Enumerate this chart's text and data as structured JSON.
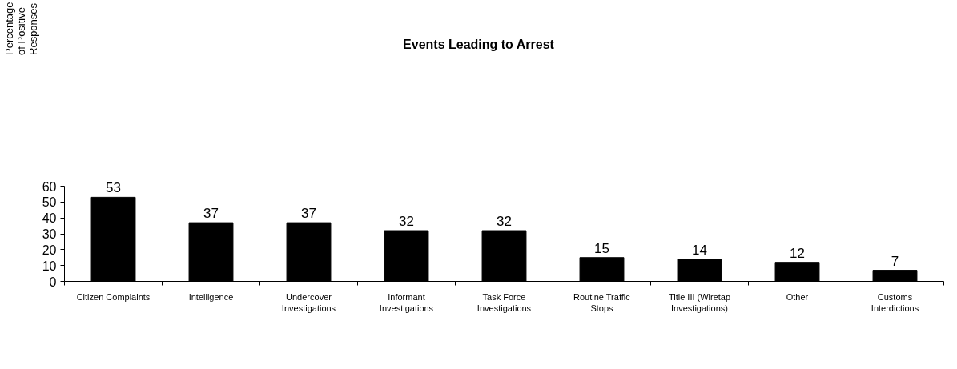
{
  "chart_data": {
    "type": "bar",
    "title": "Events Leading to Arrest",
    "annotations": [
      "Percentage of Positive Responses"
    ],
    "categories": [
      "Citizen Complaints",
      "Intelligence",
      "Undercover Investigations",
      "Informant Investigations",
      "Task Force Investigations",
      "Routine Traffic Stops",
      "Title III (Wiretap Investigations)",
      "Other",
      "Customs Interdictions"
    ],
    "values": [
      53,
      37,
      37,
      32,
      32,
      15,
      14,
      12,
      7
    ],
    "color": "#000000",
    "data_labels": true,
    "ylim": [
      0,
      60
    ],
    "yticks": [
      0,
      10,
      20,
      30,
      40,
      50,
      60
    ],
    "grid": false
  }
}
